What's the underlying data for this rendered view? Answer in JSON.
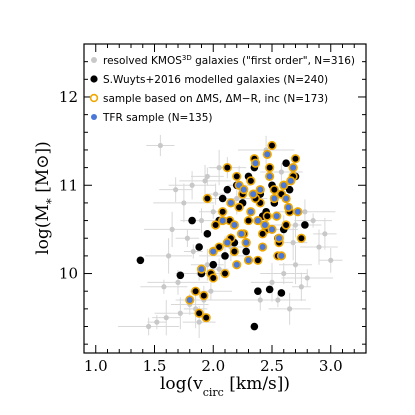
{
  "chart_data": {
    "type": "scatter",
    "xlabel": "log(v",
    "xlabel_sub": "circ",
    "xlabel_tail": " [km/s])",
    "ylabel": "log(M",
    "ylabel_sub": "*",
    "ylabel_tail": " [M",
    "ylabel_sun": "⊙",
    "ylabel_end": "])",
    "xlim": [
      0.9,
      3.3
    ],
    "ylim": [
      9.1,
      12.6
    ],
    "xticks": [
      "1.0",
      "1.5",
      "2.0",
      "2.5",
      "3.0"
    ],
    "xtick_values": [
      1.0,
      1.5,
      2.0,
      2.5,
      3.0
    ],
    "yticks": [
      "10",
      "11",
      "12"
    ],
    "ytick_values": [
      10,
      11,
      12
    ],
    "legend_position": "top-left",
    "legend": [
      {
        "label_pre": "resolved KMOS",
        "label_sup": "3D",
        "label_post": " galaxies (\"first order\", N=316)"
      },
      {
        "label_pre": "S.Wuyts+2016 modelled galaxies (N=240)",
        "label_sup": "",
        "label_post": ""
      },
      {
        "label_pre": "sample based on ΔMS, ΔM−R, inc (N=173)",
        "label_sup": "",
        "label_post": ""
      },
      {
        "label_pre": "TFR sample (N=135)",
        "label_sup": "",
        "label_post": ""
      }
    ],
    "series": [
      {
        "name": "resolved KMOS3D galaxies",
        "color": "#c8c8c8",
        "x": [
          1.52,
          1.72,
          1.8,
          1.85,
          1.92,
          1.98,
          1.6,
          1.7,
          1.88,
          1.95,
          2.05,
          2.1,
          2.15,
          1.78,
          1.65,
          1.9,
          2.0,
          2.2,
          2.6,
          2.7,
          2.75,
          2.8,
          2.9,
          3.0,
          2.55,
          2.65,
          1.55,
          1.75,
          1.82,
          1.95,
          2.05,
          2.7,
          2.85,
          2.95,
          2.4,
          2.5,
          2.6,
          1.45,
          1.62,
          1.68,
          1.83,
          1.93,
          2.12,
          2.22,
          2.45,
          2.58,
          2.68,
          2.78,
          1.58,
          1.88,
          2.02
        ],
        "y": [
          9.45,
          9.55,
          9.65,
          9.6,
          9.7,
          9.8,
          9.5,
          9.9,
          10.0,
          10.1,
          10.05,
          10.2,
          10.3,
          10.4,
          10.5,
          10.6,
          10.7,
          10.85,
          10.0,
          10.1,
          9.85,
          9.95,
          10.3,
          10.15,
          9.7,
          9.6,
          11.45,
          10.8,
          11.0,
          11.1,
          11.2,
          10.55,
          10.6,
          10.45,
          9.7,
          9.9,
          10.5,
          9.4,
          10.2,
          10.95,
          10.25,
          11.05,
          11.2,
          11.0,
          11.4,
          11.15,
          10.35,
          10.7,
          9.85,
          9.45,
          10.9
        ]
      },
      {
        "name": "S.Wuyts+2016 modelled galaxies",
        "color": "#000000",
        "x": [
          1.38,
          1.72,
          1.88,
          1.95,
          2.05,
          2.12,
          2.2,
          2.25,
          2.3,
          2.35,
          2.4,
          2.45,
          2.5,
          2.55,
          2.6,
          2.65,
          2.7,
          2.78,
          1.9,
          2.0,
          2.1,
          2.18,
          2.28,
          2.38,
          2.48,
          2.58,
          2.35,
          2.42,
          2.52,
          2.62,
          2.08,
          1.82
        ],
        "y": [
          10.15,
          9.98,
          10.3,
          10.45,
          10.6,
          10.95,
          11.0,
          10.8,
          11.1,
          11.2,
          10.9,
          10.7,
          11.0,
          10.4,
          10.5,
          10.95,
          11.1,
          10.55,
          10.0,
          10.1,
          10.2,
          10.35,
          10.25,
          9.8,
          9.82,
          9.78,
          9.4,
          10.65,
          10.8,
          11.25,
          10.85,
          10.6
        ],
        "size": 3.8
      },
      {
        "name": "sample based on ΔMS, ΔM−R, inc",
        "color": "#f0a800",
        "x": [
          1.88,
          1.92,
          1.98,
          2.02,
          2.08,
          2.12,
          2.15,
          2.2,
          2.25,
          2.3,
          2.35,
          2.4,
          2.45,
          2.5,
          2.55,
          2.6,
          2.65,
          2.7,
          2.75,
          1.95,
          2.05,
          2.18,
          2.28,
          2.38,
          2.48,
          2.58,
          2.68,
          2.1,
          2.22,
          2.32,
          2.42,
          2.52,
          2.62,
          2.0,
          2.14,
          2.26,
          2.36,
          2.46,
          2.56,
          1.85,
          1.94
        ],
        "y": [
          9.55,
          9.75,
          10.0,
          10.55,
          10.7,
          11.2,
          10.4,
          11.1,
          10.9,
          10.6,
          11.3,
          10.8,
          10.5,
          11.45,
          10.2,
          11.0,
          10.7,
          11.3,
          10.4,
          10.85,
          10.3,
          10.25,
          10.35,
          10.15,
          11.2,
          10.9,
          11.1,
          10.0,
          10.75,
          11.05,
          10.45,
          10.95,
          10.55,
          9.95,
          10.6,
          10.45,
          10.85,
          10.65,
          10.35,
          9.8,
          9.5
        ],
        "size": 3.8
      },
      {
        "name": "TFR sample",
        "color": "#4a78d8",
        "x": [
          1.8,
          1.9,
          2.0,
          2.08,
          2.15,
          2.22,
          2.28,
          2.32,
          2.36,
          2.4,
          2.44,
          2.48,
          2.52,
          2.56,
          2.6,
          2.64,
          2.68,
          2.3,
          2.34,
          2.38,
          2.42,
          2.46,
          2.5,
          2.54,
          2.24,
          2.2,
          2.26,
          2.58,
          2.62,
          2.66,
          2.72,
          2.18,
          2.12
        ],
        "y": [
          9.7,
          10.05,
          10.25,
          10.6,
          10.8,
          11.0,
          10.35,
          10.7,
          11.25,
          10.95,
          10.55,
          11.1,
          10.85,
          10.4,
          11.0,
          10.75,
          11.2,
          10.15,
          10.9,
          10.6,
          10.3,
          11.35,
          10.5,
          10.65,
          10.45,
          10.1,
          10.95,
          10.2,
          10.85,
          11.05,
          10.7,
          10.55,
          10.35
        ],
        "size": 3.8
      }
    ]
  }
}
